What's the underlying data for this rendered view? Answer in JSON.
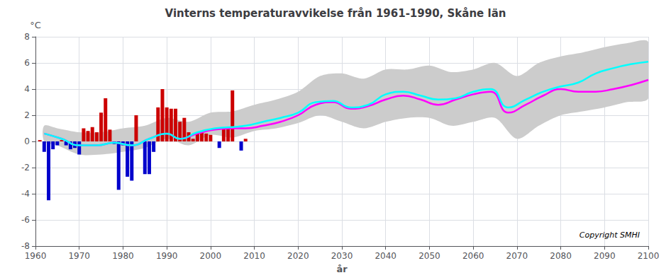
{
  "chart_data": {
    "type": "bar",
    "title": "Vinterns temperaturavvikelse från 1961-1990, Skåne län",
    "xlabel": "år",
    "ylabel": "°C",
    "annotation": "Copyright SMHI",
    "xlim": [
      1960,
      2100
    ],
    "xticks": [
      1960,
      1970,
      1980,
      1990,
      2000,
      2010,
      2020,
      2030,
      2040,
      2050,
      2060,
      2070,
      2080,
      2090,
      2100
    ],
    "ylim": [
      -8,
      8
    ],
    "yticks": [
      -8,
      -6,
      -4,
      -2,
      0,
      2,
      4,
      6,
      8
    ],
    "grid": true,
    "series": [
      {
        "type": "band",
        "color": "#cccccc",
        "x": [
          1962,
          1965,
          1970,
          1975,
          1980,
          1985,
          1990,
          1995,
          2000,
          2005,
          2010,
          2015,
          2020,
          2025,
          2030,
          2035,
          2040,
          2045,
          2050,
          2055,
          2060,
          2065,
          2070,
          2075,
          2080,
          2085,
          2090,
          2095,
          2100
        ],
        "upper": [
          1.2,
          1.0,
          0.7,
          0.7,
          1.0,
          1.2,
          1.8,
          1.5,
          2.2,
          2.3,
          2.8,
          3.2,
          3.8,
          5.0,
          5.2,
          4.8,
          5.5,
          5.5,
          5.8,
          5.3,
          5.5,
          6.0,
          5.0,
          6.0,
          6.5,
          6.8,
          7.2,
          7.5,
          7.6
        ],
        "lower": [
          0.0,
          -0.3,
          -1.0,
          -1.0,
          -0.8,
          -0.5,
          0.2,
          -0.3,
          0.5,
          0.3,
          0.8,
          1.0,
          1.4,
          2.0,
          1.5,
          1.0,
          1.5,
          1.8,
          1.8,
          1.2,
          1.5,
          1.8,
          0.2,
          1.2,
          2.0,
          2.3,
          2.6,
          3.0,
          3.3
        ]
      },
      {
        "type": "bar",
        "x": [
          1961,
          1962,
          1963,
          1964,
          1965,
          1966,
          1967,
          1968,
          1969,
          1970,
          1971,
          1972,
          1973,
          1974,
          1975,
          1976,
          1977,
          1978,
          1979,
          1980,
          1981,
          1982,
          1983,
          1984,
          1985,
          1986,
          1987,
          1988,
          1989,
          1990,
          1991,
          1992,
          1993,
          1994,
          1995,
          1996,
          1997,
          1998,
          1999,
          2000,
          2001,
          2002,
          2003,
          2004,
          2005,
          2006,
          2007,
          2008
        ],
        "values": [
          0.1,
          -0.8,
          -4.5,
          -0.6,
          -0.3,
          0.1,
          -0.3,
          -0.6,
          -0.5,
          -1.0,
          1.0,
          0.8,
          1.1,
          0.7,
          2.2,
          3.3,
          0.9,
          -0.2,
          -3.7,
          -0.3,
          -2.7,
          -3.0,
          2.0,
          0.0,
          -2.5,
          -2.5,
          -0.8,
          2.6,
          4.0,
          2.6,
          2.5,
          2.5,
          1.5,
          1.8,
          0.7,
          0.2,
          0.6,
          0.7,
          0.6,
          0.5,
          0.0,
          -0.5,
          1.0,
          1.0,
          3.9,
          0.0,
          -0.7,
          0.2
        ],
        "colors": [
          "#cc0000",
          "#0000cc",
          "#0000cc",
          "#0000cc",
          "#0000cc",
          "#cc0000",
          "#0000cc",
          "#0000cc",
          "#0000cc",
          "#0000cc",
          "#cc0000",
          "#cc0000",
          "#cc0000",
          "#cc0000",
          "#cc0000",
          "#cc0000",
          "#cc0000",
          "#0000cc",
          "#0000cc",
          "#0000cc",
          "#0000cc",
          "#0000cc",
          "#cc0000",
          "#cc0000",
          "#0000cc",
          "#0000cc",
          "#0000cc",
          "#cc0000",
          "#cc0000",
          "#cc0000",
          "#cc0000",
          "#cc0000",
          "#cc0000",
          "#cc0000",
          "#cc0000",
          "#cc0000",
          "#cc0000",
          "#cc0000",
          "#cc0000",
          "#cc0000",
          "#cc0000",
          "#0000cc",
          "#cc0000",
          "#cc0000",
          "#cc0000",
          "#cc0000",
          "#0000cc",
          "#cc0000"
        ]
      },
      {
        "type": "line",
        "color": "#ff00ff",
        "x": [
          1962,
          1966,
          1970,
          1974,
          1978,
          1982,
          1986,
          1990,
          1993,
          1997,
          2001,
          2005,
          2008,
          2012,
          2016,
          2020,
          2024,
          2028,
          2032,
          2036,
          2040,
          2044,
          2048,
          2052,
          2056,
          2060,
          2064,
          2068,
          2072,
          2076,
          2080,
          2084,
          2088,
          2092,
          2096,
          2100
        ],
        "values": [
          0.6,
          0.2,
          -0.3,
          -0.3,
          -0.1,
          -0.3,
          0.2,
          0.6,
          0.2,
          0.6,
          0.9,
          1.0,
          1.0,
          1.2,
          1.5,
          2.0,
          2.8,
          3.0,
          2.5,
          2.7,
          3.2,
          3.5,
          3.2,
          2.8,
          3.2,
          3.6,
          3.8,
          2.2,
          2.8,
          3.5,
          4.0,
          3.8,
          3.8,
          4.0,
          4.3,
          4.7
        ]
      },
      {
        "type": "line",
        "color": "#00ffff",
        "x": [
          1962,
          1966,
          1970,
          1974,
          1978,
          1982,
          1986,
          1990,
          1993,
          1997,
          2001,
          2005,
          2008,
          2012,
          2016,
          2020,
          2024,
          2028,
          2032,
          2036,
          2040,
          2044,
          2048,
          2052,
          2056,
          2060,
          2064,
          2068,
          2072,
          2076,
          2080,
          2084,
          2088,
          2092,
          2096,
          2100
        ],
        "values": [
          0.6,
          0.2,
          -0.3,
          -0.3,
          -0.1,
          -0.3,
          0.2,
          0.6,
          0.2,
          0.7,
          1.0,
          1.1,
          1.2,
          1.5,
          1.8,
          2.2,
          3.0,
          3.1,
          2.6,
          2.8,
          3.6,
          3.8,
          3.5,
          3.2,
          3.3,
          3.8,
          4.0,
          2.6,
          3.2,
          3.8,
          4.2,
          4.5,
          5.2,
          5.6,
          5.9,
          6.1
        ]
      }
    ]
  }
}
